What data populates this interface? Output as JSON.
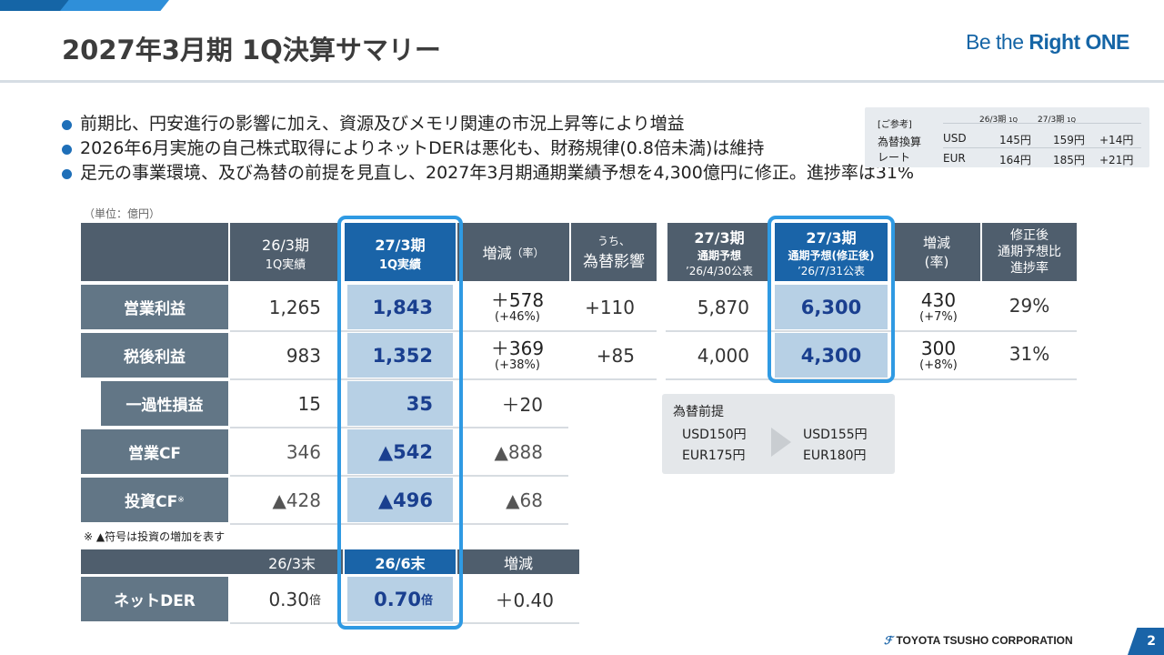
{
  "header": {
    "title": "2027年3月期 1Q決算サマリー",
    "logo_pre": "Be the ",
    "logo_bold": "Right ONE"
  },
  "bullets": [
    "前期比、円安進行の影響に加え、資源及びメモリ関連の市況上昇等により増益",
    "2026年6月実施の自己株式取得によりネットDERは悪化も、財務規律(0.8倍未満)は維持",
    "足元の事業環境、及び為替の前提を見直し、2027年3月期通期業績予想を4,300億円に修正。進捗率は31%"
  ],
  "fx_ref": {
    "tag": "[ご参考]",
    "label1": "為替換算",
    "label2": "レート",
    "col1": "26/3期",
    "col2": "27/3期",
    "col_suffix": "1Q",
    "rows": [
      {
        "ccy": "USD",
        "v1": "145円",
        "v2": "159円",
        "diff": "+14円"
      },
      {
        "ccy": "EUR",
        "v1": "164円",
        "v2": "185円",
        "diff": "+21円"
      }
    ]
  },
  "unit": "（単位：億円）",
  "left_table": {
    "h_prev_1": "26/3期",
    "h_prev_2": "1Q実績",
    "h_cur_1": "27/3期",
    "h_cur_2": "1Q実績",
    "h_chg_1": "増減",
    "h_chg_2": "（率）",
    "h_fx_1": "うち、",
    "h_fx_2": "為替影響",
    "rows": [
      {
        "label": "営業利益",
        "prev": "1,265",
        "cur": "1,843",
        "chg": "＋578",
        "rate": "(+46%)",
        "fx": "+110"
      },
      {
        "label": "税後利益",
        "prev": "983",
        "cur": "1,352",
        "chg": "＋369",
        "rate": "(+38%)",
        "fx": "+85"
      },
      {
        "label": "一過性損益",
        "prev": "15",
        "cur": "35",
        "chg": "＋20"
      },
      {
        "label": "営業CF",
        "prev": "346",
        "cur": "▲542",
        "chg": "▲888"
      },
      {
        "label": "投資CF",
        "label_sup": "※",
        "prev": "▲428",
        "cur": "▲496",
        "chg": "▲68"
      }
    ]
  },
  "note": "※ ▲符号は投資の増加を表す",
  "der_table": {
    "h_prev": "26/3末",
    "h_cur": "26/6末",
    "h_chg": "増減",
    "label": "ネットDER",
    "prev": "0.30",
    "cur": "0.70",
    "unit": "倍",
    "chg": "＋0.40"
  },
  "right_table": {
    "h_plan_1": "27/3期",
    "h_plan_2": "通期予想",
    "h_plan_3": "’26/4/30公表",
    "h_rev_1": "27/3期",
    "h_rev_2": "通期予想(修正後)",
    "h_rev_3": "’26/7/31公表",
    "h_chg_1": "増減",
    "h_chg_2": "(率)",
    "h_prog_1": "修正後",
    "h_prog_2": "通期予想比",
    "h_prog_3": "進捗率",
    "rows": [
      {
        "plan": "5,870",
        "rev": "6,300",
        "chg": "430",
        "rate": "(+7%)",
        "prog": "29%"
      },
      {
        "plan": "4,000",
        "rev": "4,300",
        "chg": "300",
        "rate": "(+8%)",
        "prog": "31%"
      }
    ]
  },
  "fx_premise": {
    "title": "為替前提",
    "before_usd": "USD150円",
    "before_eur": "EUR175円",
    "after_usd": "USD155円",
    "after_eur": "EUR180円"
  },
  "footer": {
    "company": "TOYOTA TSUSHO CORPORATION",
    "page": "2"
  },
  "colors": {
    "accent": "#1a64a8",
    "highlight_frame": "#2f9ae3",
    "header_gray": "#4f5e6d",
    "row_label": "#627686",
    "highlight_cell": "#b7d0e5"
  }
}
